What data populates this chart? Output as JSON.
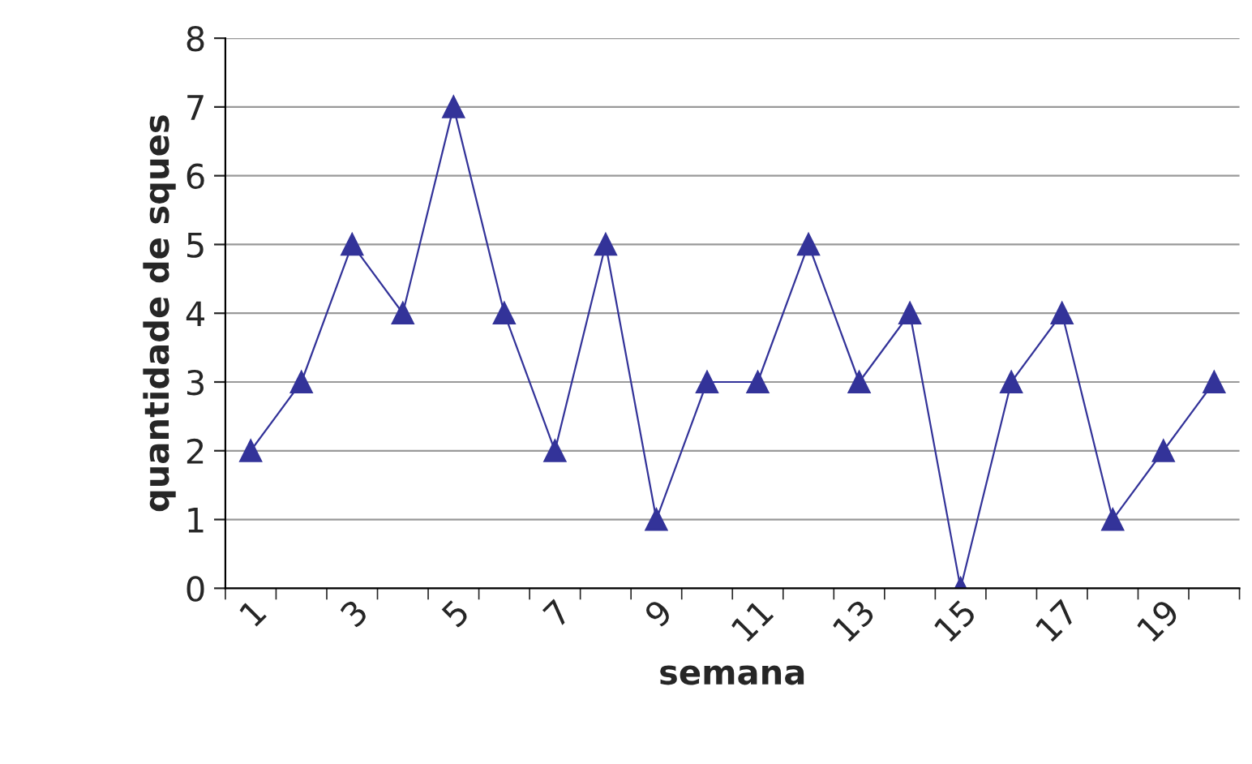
{
  "chart_data": {
    "type": "line",
    "xlabel": "semana",
    "ylabel": "quantidade de sques",
    "categories": [
      "1",
      null,
      "3",
      null,
      "5",
      null,
      "7",
      null,
      "9",
      null,
      "11",
      null,
      "13",
      null,
      "15",
      null,
      "17",
      null,
      "19",
      null
    ],
    "series": [
      {
        "color": "#333399",
        "values": [
          2,
          3,
          5,
          4,
          7,
          4,
          2,
          5,
          1,
          3,
          3,
          5,
          3,
          4,
          0,
          3,
          4,
          1,
          2,
          3
        ]
      }
    ],
    "ylim": [
      0,
      8
    ],
    "yticks": [
      0,
      1,
      2,
      3,
      4,
      5,
      6,
      7,
      8
    ],
    "grid": "y",
    "legend": false,
    "marker": "triangle",
    "line_style": "solid"
  }
}
